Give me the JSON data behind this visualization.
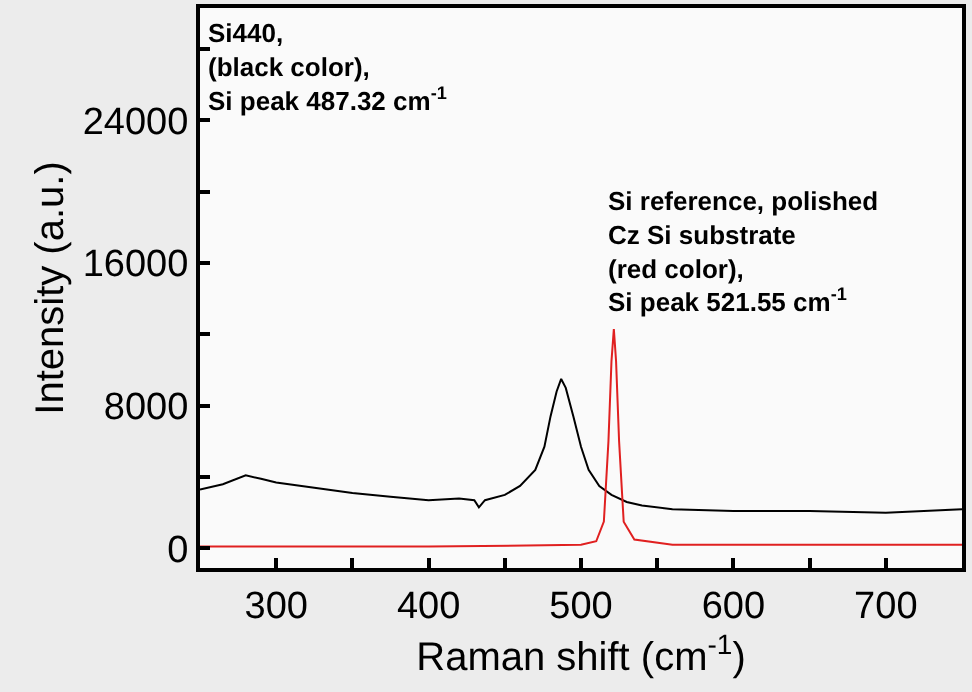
{
  "chart_data": {
    "type": "line",
    "xlabel": "Raman shift (cm$^{-1}$)",
    "ylabel": "Intensity (a.u.)",
    "annotations": [
      "Si440,\n(black color),\nSi peak 487.32 cm$^{-1}$",
      "Si reference, polished\nCz Si substrate\n(red color),\nSi peak 521.55 cm$^{-1}$"
    ],
    "series": [
      {
        "color": "#000000",
        "x": [
          250,
          265,
          280,
          290,
          300,
          325,
          350,
          375,
          400,
          420,
          430,
          433,
          437,
          450,
          460,
          470,
          476,
          480,
          484,
          487,
          490,
          495,
          500,
          505,
          512,
          520,
          530,
          540,
          560,
          600,
          650,
          700,
          750
        ],
        "values": [
          3300,
          3600,
          4100,
          3900,
          3700,
          3400,
          3100,
          2900,
          2700,
          2800,
          2700,
          2300,
          2700,
          3000,
          3500,
          4400,
          5700,
          7400,
          8800,
          9500,
          9000,
          7400,
          5700,
          4400,
          3500,
          3000,
          2600,
          2400,
          2200,
          2100,
          2100,
          2000,
          2200
        ]
      },
      {
        "color": "#e02020",
        "x": [
          250,
          300,
          400,
          500,
          510,
          515,
          518,
          520,
          521.55,
          523,
          525,
          528,
          535,
          560,
          650,
          750
        ],
        "values": [
          100,
          100,
          100,
          200,
          400,
          1500,
          6000,
          10500,
          12300,
          10500,
          6000,
          1500,
          500,
          200,
          200,
          200
        ]
      }
    ],
    "xlim": [
      250,
      750
    ],
    "ylim": [
      -1100,
      30300
    ],
    "xticks": [
      {
        "value": 250,
        "label": null
      },
      300,
      {
        "value": 350,
        "label": null
      },
      400,
      {
        "value": 450,
        "label": null
      },
      500,
      {
        "value": 550,
        "label": null
      },
      600,
      {
        "value": 650,
        "label": null
      },
      700
    ],
    "yticks": [
      0,
      {
        "value": 4000,
        "label": null
      },
      8000,
      {
        "value": 12000,
        "label": null
      },
      16000,
      {
        "value": 20000,
        "label": null
      },
      24000,
      {
        "value": 28000,
        "label": null
      }
    ],
    "marker": "none"
  }
}
